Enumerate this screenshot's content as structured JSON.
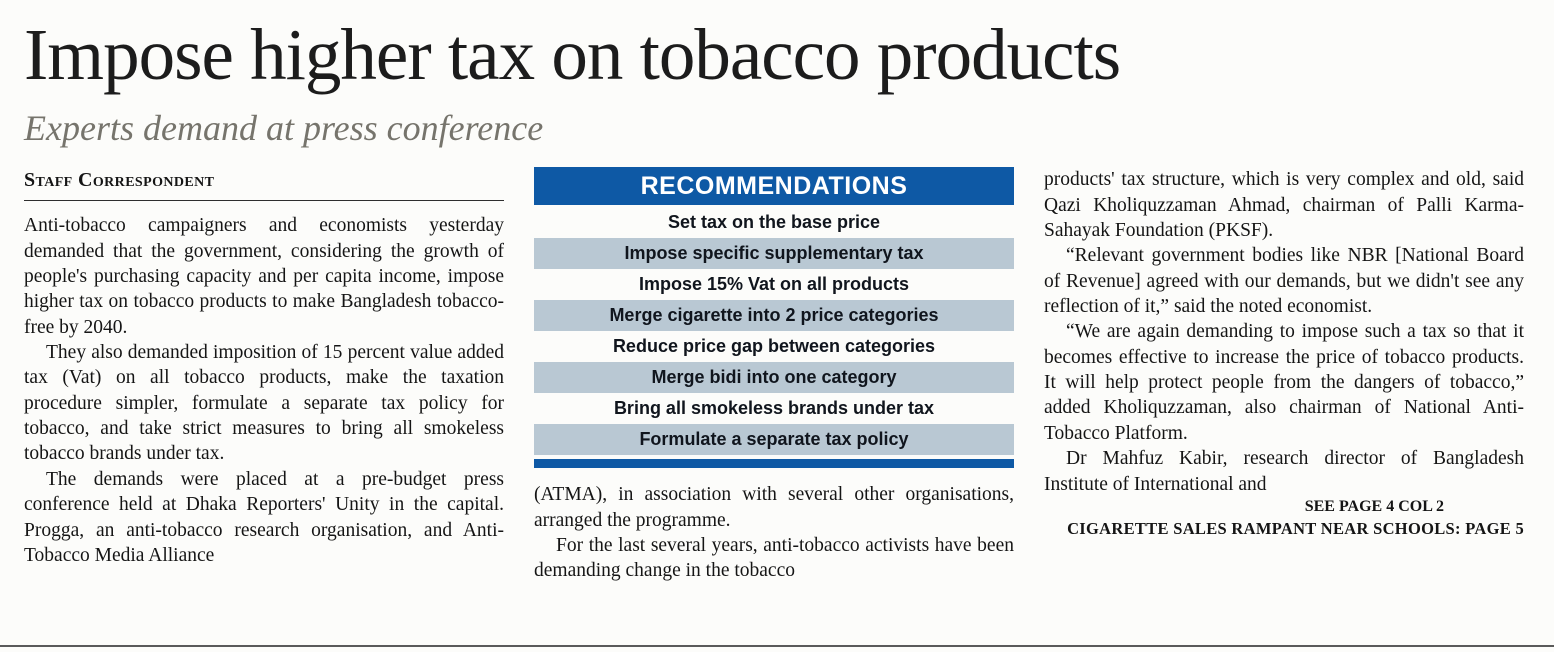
{
  "article": {
    "headline": "Impose higher tax on tobacco products",
    "subheadline": "Experts demand at press conference",
    "byline": "Staff Correspondent",
    "columns": {
      "left": [
        "Anti-tobacco campaigners and economists yesterday demanded that the government, considering the growth of people's purchasing capacity and per capita income, impose higher tax on tobacco products to make Bangladesh tobacco-free by 2040.",
        "They also demanded imposition of 15 percent value added tax (Vat) on all tobacco products, make the taxation procedure simpler, formulate a separate tax policy for tobacco, and take strict measures to bring all smokeless tobacco brands under tax.",
        "The demands were placed at a pre-budget press conference held at Dhaka Reporters' Unity in the capital. Progga, an anti-tobacco research organisation, and Anti-Tobacco Media Alliance"
      ],
      "middle": [
        "(ATMA), in association with several other organisations, arranged the programme.",
        "For the last several years, anti-tobacco activists have been demanding change in the tobacco"
      ],
      "right": [
        "products' tax structure, which is very complex and old, said Qazi Kholiquzzaman Ahmad, chairman of Palli Karma-Sahayak Foundation (PKSF).",
        "“Relevant government bodies like NBR [National Board of Revenue] agreed with our demands, but we didn't see any reflection of it,” said the noted economist.",
        "“We are again demanding to impose such a tax so that it becomes effective to increase the price of tobacco products. It will help protect people from the dangers of tobacco,” added Kholiquzzaman, also chairman of National Anti-Tobacco Platform.",
        "Dr Mahfuz Kabir, research director of Bangladesh Institute of International and"
      ]
    },
    "see_page_ref": "SEE PAGE 4 COL 2",
    "related_story_ref": "CIGARETTE SALES RAMPANT NEAR SCHOOLS: PAGE 5"
  },
  "recommendations": {
    "title": "RECOMMENDATIONS",
    "items": [
      "Set tax on the base price",
      "Impose specific supplementary tax",
      "Impose 15% Vat on all products",
      "Merge cigarette into 2 price categories",
      "Reduce price gap between categories",
      "Merge bidi into one category",
      "Bring all smokeless brands under tax",
      "Formulate a separate tax policy"
    ],
    "colors": {
      "header_bg": "#0e59a5",
      "header_text": "#ffffff",
      "row_shade": "#b9c8d3",
      "footer_bar": "#0e59a5"
    }
  }
}
